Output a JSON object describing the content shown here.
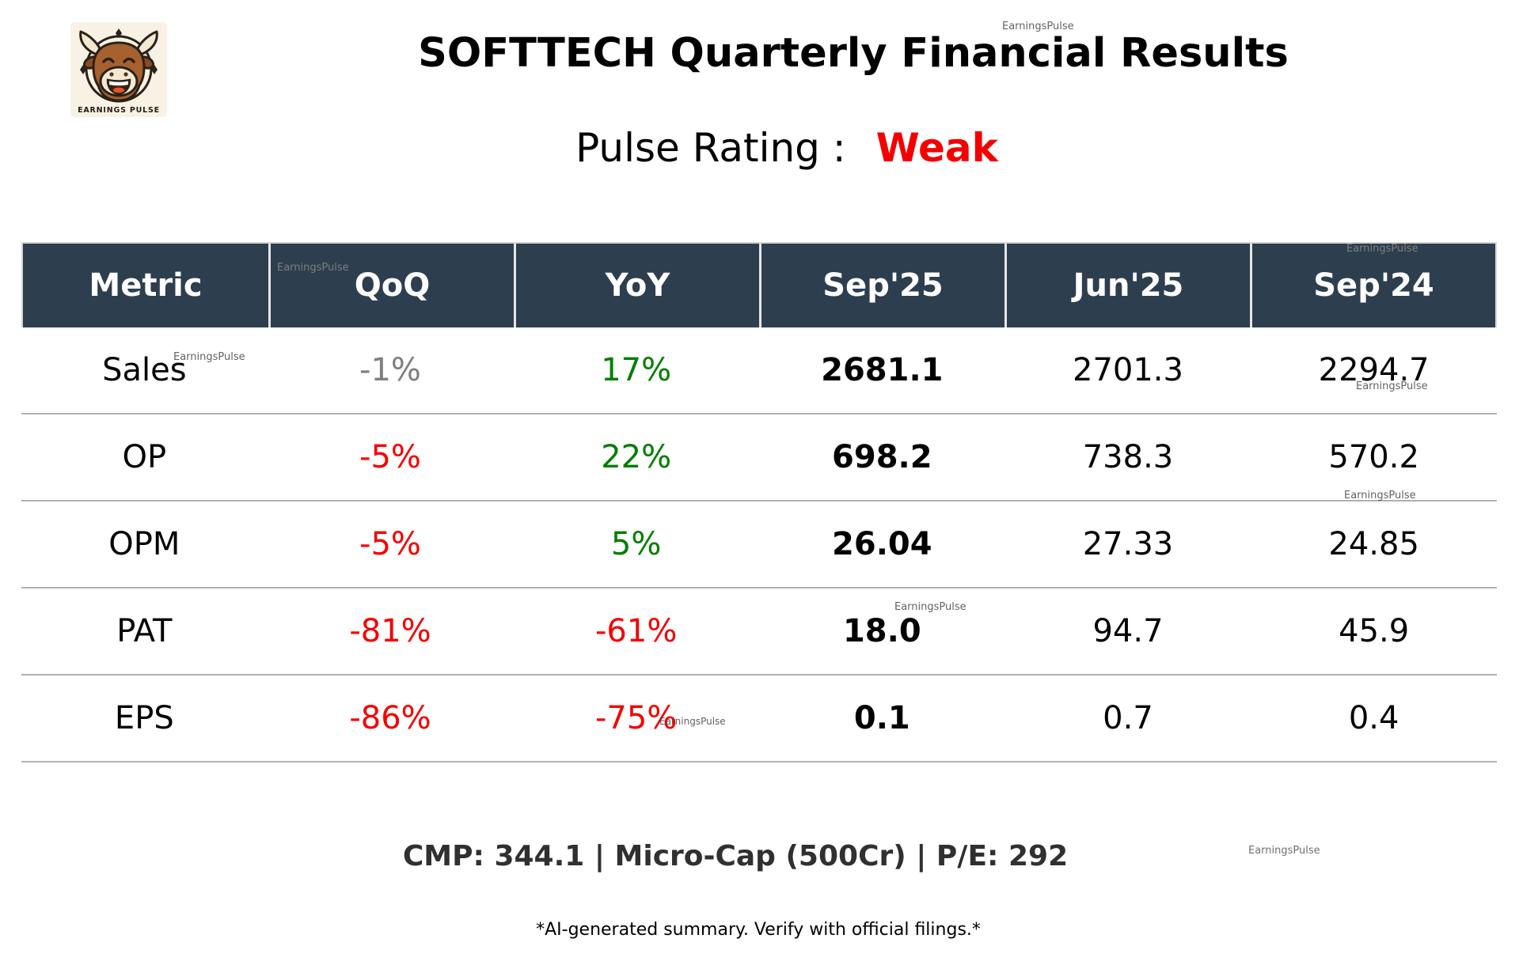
{
  "brand": {
    "watermark": "EarningsPulse",
    "logo_text": "EARNINGS PULSE"
  },
  "header": {
    "title": "SOFTTECH Quarterly Financial Results",
    "rating_label": "Pulse Rating :",
    "rating_value": "Weak"
  },
  "table": {
    "columns": [
      "Metric",
      "QoQ",
      "YoY",
      "Sep'25",
      "Jun'25",
      "Sep'24"
    ],
    "rows": [
      {
        "metric": "Sales",
        "qoq": "-1%",
        "qoq_tone": "neutral",
        "yoy": "17%",
        "yoy_tone": "positive",
        "sep25": "2681.1",
        "jun25": "2701.3",
        "sep24": "2294.7"
      },
      {
        "metric": "OP",
        "qoq": "-5%",
        "qoq_tone": "negative",
        "yoy": "22%",
        "yoy_tone": "positive",
        "sep25": "698.2",
        "jun25": "738.3",
        "sep24": "570.2"
      },
      {
        "metric": "OPM",
        "qoq": "-5%",
        "qoq_tone": "negative",
        "yoy": "5%",
        "yoy_tone": "positive",
        "sep25": "26.04",
        "jun25": "27.33",
        "sep24": "24.85"
      },
      {
        "metric": "PAT",
        "qoq": "-81%",
        "qoq_tone": "negative",
        "yoy": "-61%",
        "yoy_tone": "negative",
        "sep25": "18.0",
        "jun25": "94.7",
        "sep24": "45.9"
      },
      {
        "metric": "EPS",
        "qoq": "-86%",
        "qoq_tone": "negative",
        "yoy": "-75%",
        "yoy_tone": "negative",
        "sep25": "0.1",
        "jun25": "0.7",
        "sep24": "0.4"
      }
    ]
  },
  "footer": {
    "summary": "CMP: 344.1 | Micro-Cap (500Cr) | P/E: 292",
    "disclaimer": "*AI-generated summary. Verify with official filings.*"
  },
  "colors": {
    "header_bg": "#2d3e4f",
    "negative": "#f40000",
    "positive": "#007d00",
    "neutral": "#7f7f7f",
    "rating_weak": "#f40000",
    "logo_bg": "#f8f2e5"
  },
  "chart_data": {
    "type": "table",
    "title": "SOFTTECH Quarterly Financial Results",
    "subtitle": "Pulse Rating : Weak",
    "columns": [
      "Metric",
      "QoQ",
      "YoY",
      "Sep'25",
      "Jun'25",
      "Sep'24"
    ],
    "rows": [
      [
        "Sales",
        "-1%",
        "17%",
        2681.1,
        2701.3,
        2294.7
      ],
      [
        "OP",
        "-5%",
        "22%",
        698.2,
        738.3,
        570.2
      ],
      [
        "OPM",
        "-5%",
        "5%",
        26.04,
        27.33,
        24.85
      ],
      [
        "PAT",
        "-81%",
        "-61%",
        18.0,
        94.7,
        45.9
      ],
      [
        "EPS",
        "-86%",
        "-75%",
        0.1,
        0.7,
        0.4
      ]
    ],
    "annotations": [
      "CMP: 344.1",
      "Micro-Cap (500Cr)",
      "P/E: 292"
    ]
  }
}
